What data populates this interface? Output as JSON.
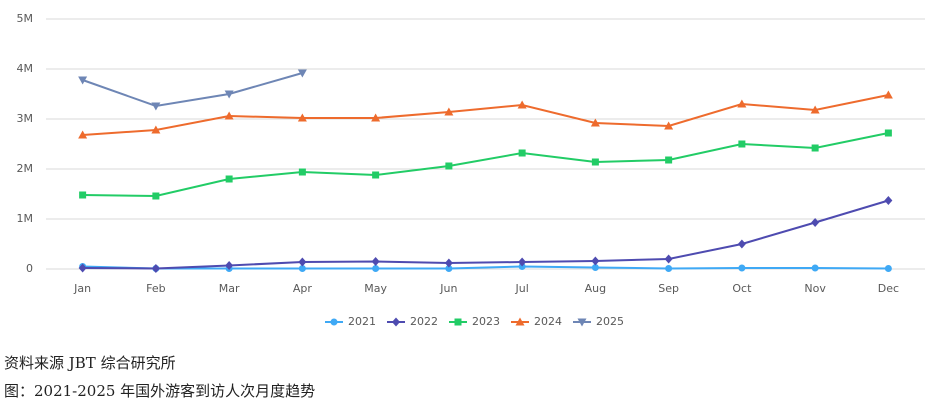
{
  "chart_data": {
    "type": "line",
    "categories": [
      "Jan",
      "Feb",
      "Mar",
      "Apr",
      "May",
      "Jun",
      "Jul",
      "Aug",
      "Sep",
      "Oct",
      "Nov",
      "Dec"
    ],
    "series": [
      {
        "name": "2021",
        "color": "#3fa9f5",
        "marker": "circle",
        "values": [
          50000,
          10000,
          10000,
          10000,
          10000,
          10000,
          50000,
          30000,
          10000,
          20000,
          20000,
          10000
        ]
      },
      {
        "name": "2022",
        "color": "#4e4bb0",
        "marker": "diamond",
        "values": [
          20000,
          10000,
          70000,
          140000,
          150000,
          120000,
          140000,
          160000,
          200000,
          500000,
          930000,
          1370000
        ]
      },
      {
        "name": "2023",
        "color": "#22cc66",
        "marker": "square",
        "values": [
          1480000,
          1460000,
          1800000,
          1940000,
          1880000,
          2060000,
          2320000,
          2140000,
          2180000,
          2500000,
          2420000,
          2720000
        ]
      },
      {
        "name": "2024",
        "color": "#ee6b2d",
        "marker": "triangle",
        "values": [
          2680000,
          2780000,
          3060000,
          3020000,
          3020000,
          3140000,
          3280000,
          2920000,
          2860000,
          3300000,
          3180000,
          3480000
        ]
      },
      {
        "name": "2025",
        "color": "#6e86b5",
        "marker": "triangle-down",
        "values": [
          3780000,
          3260000,
          3500000,
          3920000,
          null,
          null,
          null,
          null,
          null,
          null,
          null,
          null
        ]
      }
    ],
    "ylim": [
      0,
      5000000
    ],
    "yticks": [
      0,
      {
        "value": 1000000,
        "label": "1M"
      },
      {
        "value": 2000000,
        "label": "2M"
      },
      {
        "value": 3000000,
        "label": "3M"
      },
      {
        "value": 4000000,
        "label": "4M"
      },
      {
        "value": 5000000,
        "label": "5M"
      }
    ],
    "grid": true,
    "legend": "bottom"
  },
  "source": "资料来源 JBT 综合研究所",
  "caption": "图：2021-2025 年国外游客到访人次月度趋势"
}
